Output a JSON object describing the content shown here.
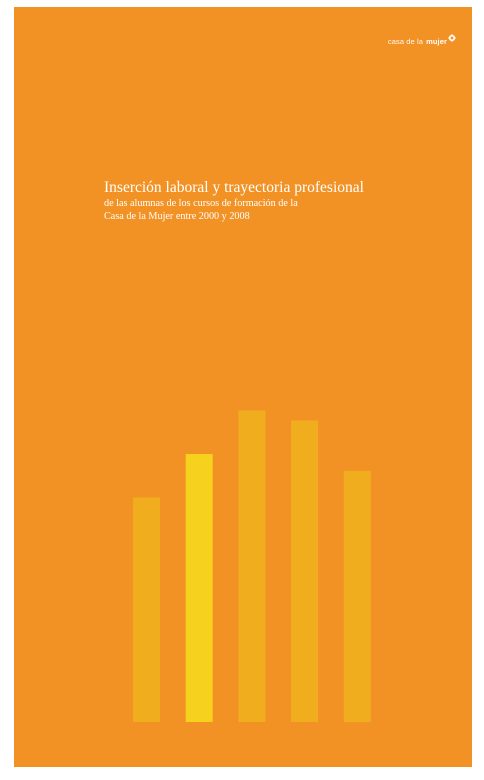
{
  "brand": {
    "prefix": "casa de la",
    "name": "mujer",
    "mark_icon": "flower-asterisk-icon"
  },
  "cover": {
    "title": "Inserción laboral y trayectoria profesional",
    "subtitle_line1": "de las alumnas de los cursos de formación de la",
    "subtitle_line2": "Casa de la Mujer entre 2000 y 2008"
  },
  "colors": {
    "background": "#f39224",
    "bar": "#f0ae1f",
    "bar_highlight": "#f6d21e",
    "text": "#ffffff"
  },
  "chart_data": {
    "type": "bar",
    "categories": [
      "",
      "",
      "",
      "",
      ""
    ],
    "values": [
      0.67,
      0.8,
      0.93,
      0.9,
      0.75
    ],
    "highlight_index": 1,
    "grid": false,
    "axes": false
  }
}
